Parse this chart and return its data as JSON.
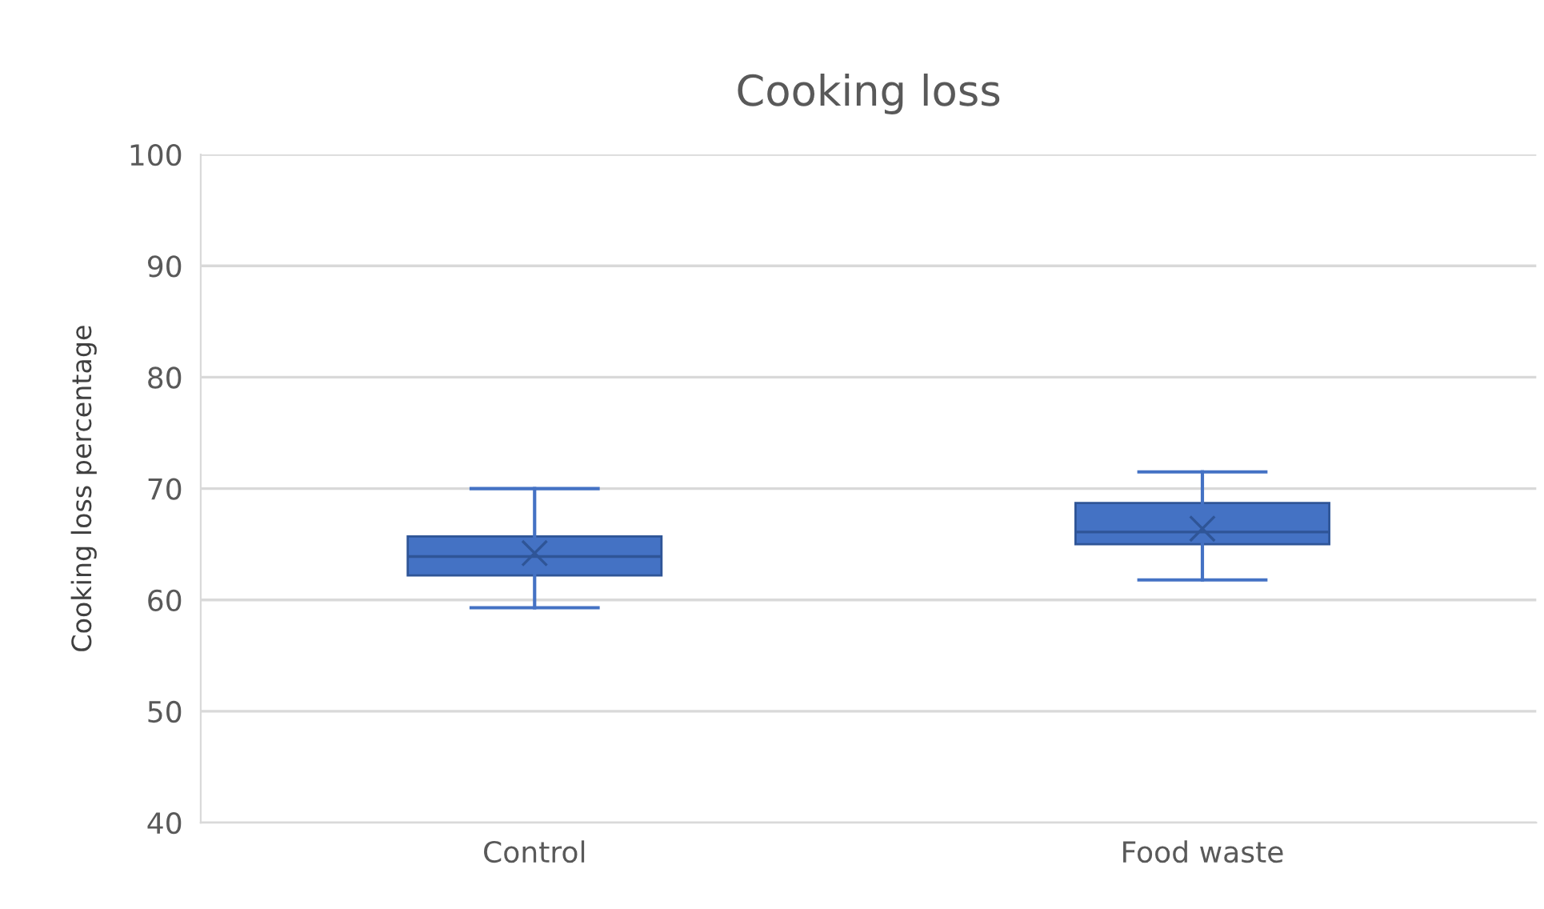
{
  "chart_data": {
    "type": "box",
    "title": "Cooking loss",
    "ylabel": "Cooking loss percentage",
    "categories": [
      "Control",
      "Food waste"
    ],
    "boxes": [
      {
        "low": 59.3,
        "q1": 62.2,
        "median": 63.9,
        "q3": 65.7,
        "high": 70.0,
        "mean": 64.2
      },
      {
        "low": 61.8,
        "q1": 65.0,
        "median": 66.1,
        "q3": 68.7,
        "high": 71.5,
        "mean": 66.4
      }
    ],
    "color": "#4472c4",
    "ylim": [
      40,
      100
    ],
    "yticks": [
      40,
      50,
      60,
      70,
      80,
      90,
      100
    ],
    "grid": "y",
    "legend": false
  }
}
